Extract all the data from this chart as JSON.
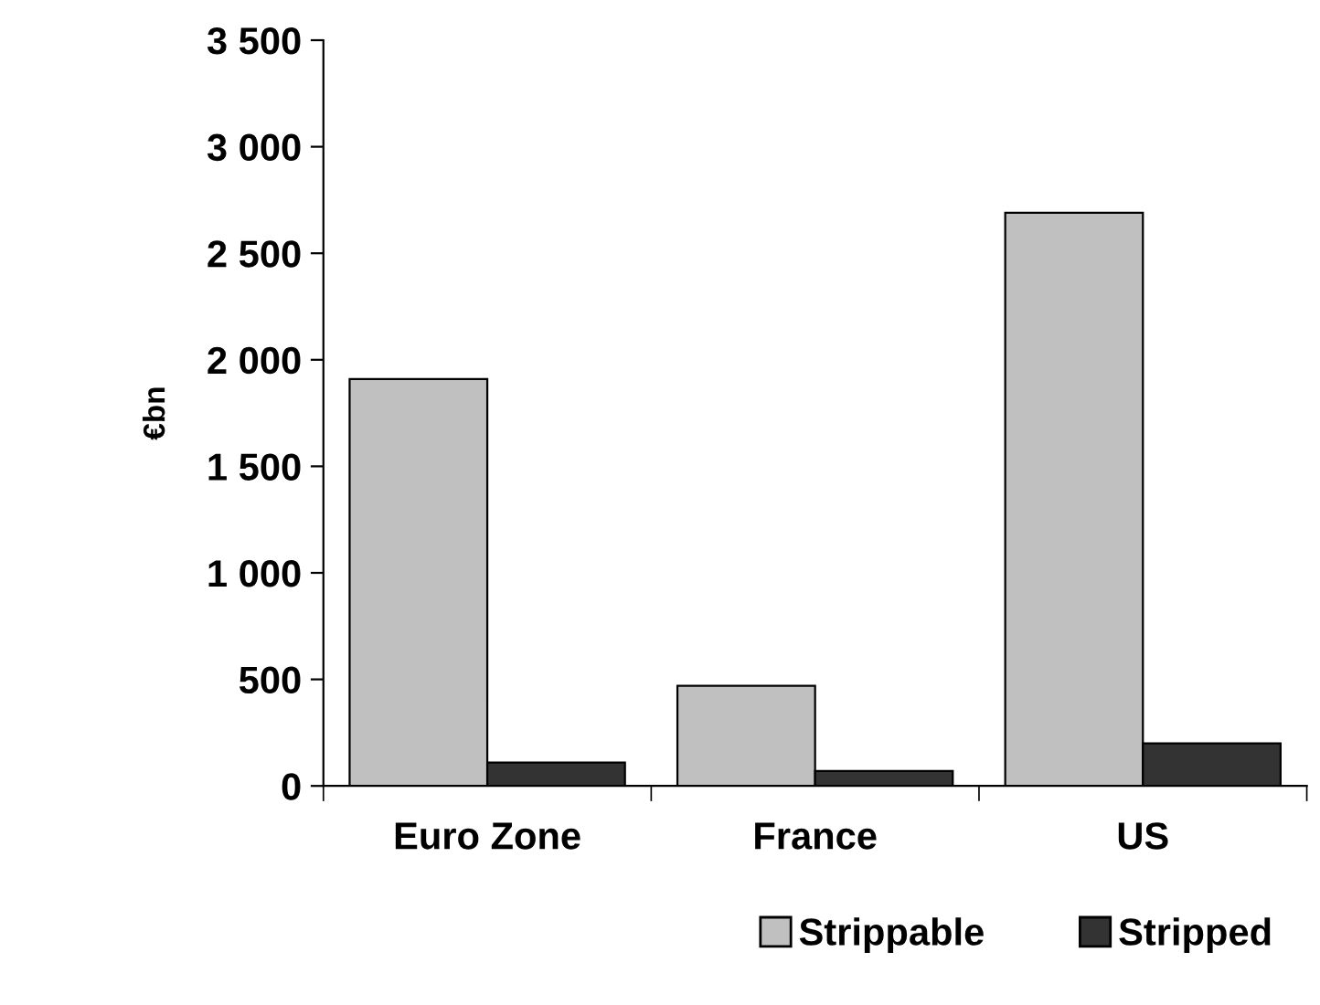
{
  "chart_data": {
    "type": "bar",
    "ylabel": "€bn",
    "categories": [
      "Euro Zone",
      "France",
      "US"
    ],
    "series": [
      {
        "name": "Strippable",
        "color": "#c0c0c0",
        "values": [
          1910,
          470,
          2690
        ]
      },
      {
        "name": "Stripped",
        "color": "#333333",
        "values": [
          110,
          70,
          200
        ]
      }
    ],
    "ylim": [
      0,
      3500
    ],
    "yticks": [
      {
        "value": 0,
        "label": "0"
      },
      {
        "value": 500,
        "label": "500"
      },
      {
        "value": 1000,
        "label": "1 000"
      },
      {
        "value": 1500,
        "label": "1 500"
      },
      {
        "value": 2000,
        "label": "2 000"
      },
      {
        "value": 2500,
        "label": "2 500"
      },
      {
        "value": 3000,
        "label": "3 000"
      },
      {
        "value": 3500,
        "label": "3 500"
      }
    ],
    "grid": false,
    "legend": "bottom right"
  }
}
